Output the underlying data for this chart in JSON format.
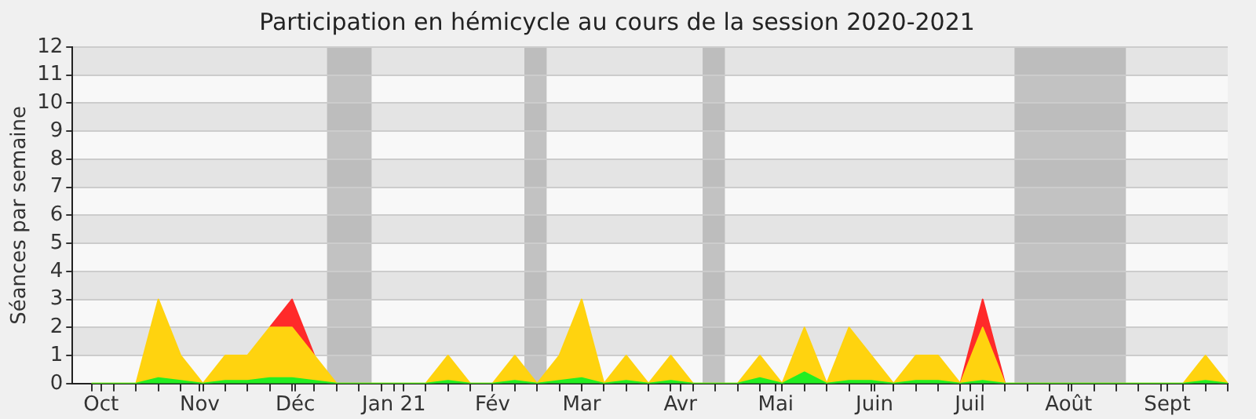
{
  "chart_data": {
    "type": "area",
    "stacked": true,
    "title": "Participation en hémicycle au cours de la session 2020-2021",
    "ylabel": "Séances par semaine",
    "x": [
      "2020-09-28",
      "2020-10-05",
      "2020-10-12",
      "2020-10-19",
      "2020-10-26",
      "2020-11-02",
      "2020-11-09",
      "2020-11-16",
      "2020-11-23",
      "2020-11-30",
      "2020-12-07",
      "2020-12-14",
      "2020-12-21",
      "2020-12-28",
      "2021-01-04",
      "2021-01-11",
      "2021-01-18",
      "2021-01-25",
      "2021-02-01",
      "2021-02-08",
      "2021-02-15",
      "2021-02-22",
      "2021-03-01",
      "2021-03-08",
      "2021-03-15",
      "2021-03-22",
      "2021-03-29",
      "2021-04-05",
      "2021-04-12",
      "2021-04-19",
      "2021-04-26",
      "2021-05-03",
      "2021-05-10",
      "2021-05-17",
      "2021-05-24",
      "2021-05-31",
      "2021-06-07",
      "2021-06-14",
      "2021-06-21",
      "2021-06-28",
      "2021-07-05",
      "2021-07-12",
      "2021-07-19",
      "2021-07-26",
      "2021-08-02",
      "2021-08-09",
      "2021-08-16",
      "2021-08-23",
      "2021-08-30",
      "2021-09-06",
      "2021-09-13",
      "2021-09-20"
    ],
    "series": [
      {
        "color": "#22ee22",
        "values": [
          0,
          0,
          0,
          0.2,
          0.1,
          0,
          0.1,
          0.1,
          0.2,
          0.2,
          0.1,
          0,
          0,
          0,
          0,
          0,
          0.1,
          0,
          0,
          0.1,
          0,
          0.1,
          0.2,
          0,
          0.1,
          0,
          0.1,
          0,
          0,
          0,
          0.2,
          0,
          0.4,
          0,
          0.1,
          0.1,
          0,
          0.1,
          0.1,
          0,
          0.1,
          0,
          0,
          0,
          0,
          0,
          0,
          0,
          0,
          0,
          0.1,
          0
        ]
      },
      {
        "color": "#ffd30f",
        "values": [
          0,
          0,
          0,
          2.8,
          0.9,
          0,
          0.9,
          0.9,
          1.8,
          1.8,
          0.9,
          0,
          0,
          0,
          0,
          0,
          0.9,
          0,
          0,
          0.9,
          0,
          0.9,
          2.8,
          0,
          0.9,
          0,
          0.9,
          0,
          0,
          0,
          0.8,
          0,
          1.6,
          0,
          1.9,
          0.9,
          0,
          0.9,
          0.9,
          0,
          1.9,
          0,
          0,
          0,
          0,
          0,
          0,
          0,
          0,
          0,
          0.9,
          0
        ]
      },
      {
        "color": "#ff2a2a",
        "values": [
          null,
          null,
          null,
          null,
          null,
          null,
          null,
          null,
          0,
          1,
          0,
          null,
          null,
          null,
          null,
          null,
          null,
          null,
          null,
          null,
          null,
          null,
          null,
          null,
          null,
          null,
          null,
          null,
          null,
          null,
          null,
          null,
          null,
          null,
          null,
          null,
          null,
          null,
          null,
          0,
          1,
          0,
          null,
          null,
          null,
          null,
          null,
          null,
          null,
          null,
          null,
          null
        ]
      }
    ],
    "xlim": [
      "2020-09-22",
      "2021-09-20"
    ],
    "xticks": [
      {
        "value": "2020-09-28",
        "label": null
      },
      {
        "value": "2020-10-01",
        "label": "Oct"
      },
      {
        "value": "2020-10-05",
        "label": null
      },
      {
        "value": "2020-10-12",
        "label": null
      },
      {
        "value": "2020-10-19",
        "label": null
      },
      {
        "value": "2020-10-26",
        "label": null
      },
      {
        "value": "2020-11-01",
        "label": "Nov"
      },
      {
        "value": "2020-11-02",
        "label": null
      },
      {
        "value": "2020-11-09",
        "label": null
      },
      {
        "value": "2020-11-16",
        "label": null
      },
      {
        "value": "2020-11-23",
        "label": null
      },
      {
        "value": "2020-11-30",
        "label": null
      },
      {
        "value": "2020-12-01",
        "label": "Déc"
      },
      {
        "value": "2020-12-07",
        "label": null
      },
      {
        "value": "2020-12-14",
        "label": null
      },
      {
        "value": "2020-12-21",
        "label": null
      },
      {
        "value": "2020-12-28",
        "label": null
      },
      {
        "value": "2021-01-01",
        "label": "Jan 21"
      },
      {
        "value": "2021-01-04",
        "label": null
      },
      {
        "value": "2021-01-11",
        "label": null
      },
      {
        "value": "2021-01-18",
        "label": null
      },
      {
        "value": "2021-01-25",
        "label": null
      },
      {
        "value": "2021-02-01",
        "label": "Fév"
      },
      {
        "value": "2021-02-08",
        "label": null
      },
      {
        "value": "2021-02-15",
        "label": null
      },
      {
        "value": "2021-02-22",
        "label": null
      },
      {
        "value": "2021-03-01",
        "label": "Mar"
      },
      {
        "value": "2021-03-08",
        "label": null
      },
      {
        "value": "2021-03-15",
        "label": null
      },
      {
        "value": "2021-03-22",
        "label": null
      },
      {
        "value": "2021-03-29",
        "label": null
      },
      {
        "value": "2021-04-01",
        "label": "Avr"
      },
      {
        "value": "2021-04-05",
        "label": null
      },
      {
        "value": "2021-04-12",
        "label": null
      },
      {
        "value": "2021-04-19",
        "label": null
      },
      {
        "value": "2021-04-26",
        "label": null
      },
      {
        "value": "2021-05-01",
        "label": "Mai"
      },
      {
        "value": "2021-05-03",
        "label": null
      },
      {
        "value": "2021-05-10",
        "label": null
      },
      {
        "value": "2021-05-17",
        "label": null
      },
      {
        "value": "2021-05-24",
        "label": null
      },
      {
        "value": "2021-05-31",
        "label": null
      },
      {
        "value": "2021-06-01",
        "label": "Juin"
      },
      {
        "value": "2021-06-07",
        "label": null
      },
      {
        "value": "2021-06-14",
        "label": null
      },
      {
        "value": "2021-06-21",
        "label": null
      },
      {
        "value": "2021-06-28",
        "label": null
      },
      {
        "value": "2021-07-01",
        "label": "Juil"
      },
      {
        "value": "2021-07-05",
        "label": null
      },
      {
        "value": "2021-07-12",
        "label": null
      },
      {
        "value": "2021-07-19",
        "label": null
      },
      {
        "value": "2021-07-26",
        "label": null
      },
      {
        "value": "2021-08-01",
        "label": "Août"
      },
      {
        "value": "2021-08-02",
        "label": null
      },
      {
        "value": "2021-08-09",
        "label": null
      },
      {
        "value": "2021-08-16",
        "label": null
      },
      {
        "value": "2021-08-23",
        "label": null
      },
      {
        "value": "2021-08-30",
        "label": null
      },
      {
        "value": "2021-09-01",
        "label": "Sept"
      },
      {
        "value": "2021-09-06",
        "label": null
      },
      {
        "value": "2021-09-13",
        "label": null
      },
      {
        "value": "2021-09-20",
        "label": null
      }
    ],
    "ylim": [
      0,
      12
    ],
    "yticks": [
      0,
      1,
      2,
      3,
      4,
      5,
      6,
      7,
      8,
      9,
      10,
      11,
      12
    ],
    "grid": "y",
    "bands": [
      {
        "axis": "x",
        "from": "2020-12-11",
        "to": "2020-12-25",
        "color": "#b0b0b0"
      },
      {
        "axis": "x",
        "from": "2021-02-11",
        "to": "2021-02-18",
        "color": "#b0b0b0"
      },
      {
        "axis": "x",
        "from": "2021-04-08",
        "to": "2021-04-15",
        "color": "#b0b0b0"
      },
      {
        "axis": "x",
        "from": "2021-07-15",
        "to": "2021-08-19",
        "color": "#b0b0b0"
      }
    ]
  }
}
